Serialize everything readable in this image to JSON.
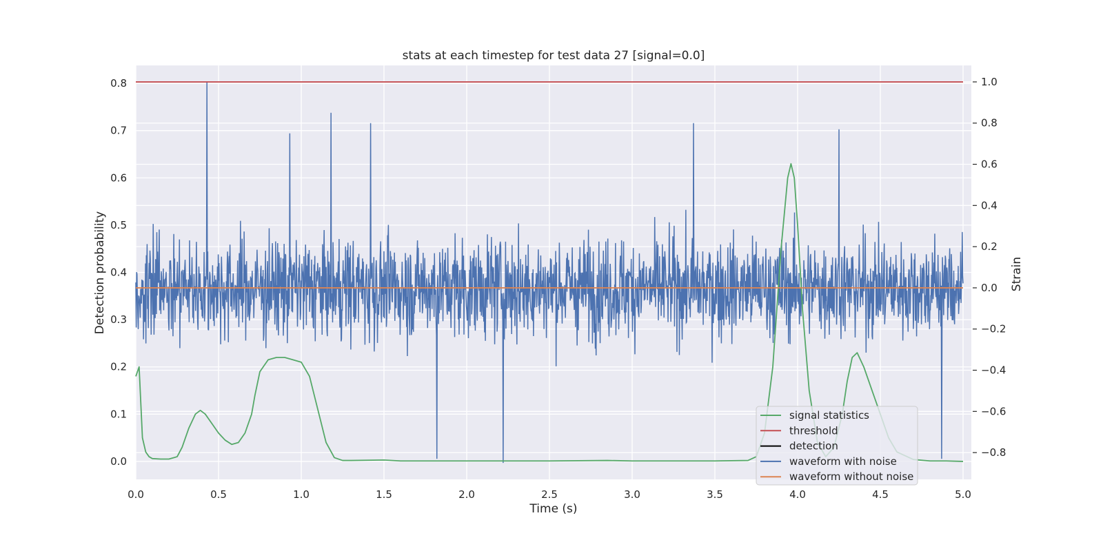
{
  "chart_data": {
    "type": "line",
    "title": "stats at each timestep for test data 27 [signal=0.0]",
    "xlabel": "Time (s)",
    "ylabel": "Detection probability",
    "y2label": "Strain",
    "xlim": [
      0.0,
      5.05
    ],
    "ylim": [
      -0.038,
      0.838
    ],
    "y2lim": [
      -0.93,
      1.08
    ],
    "xticks": [
      0.0,
      0.5,
      1.0,
      1.5,
      2.0,
      2.5,
      3.0,
      3.5,
      4.0,
      4.5,
      5.0
    ],
    "xtick_labels": [
      "0.0",
      "0.5",
      "1.0",
      "1.5",
      "2.0",
      "2.5",
      "3.0",
      "3.5",
      "4.0",
      "4.5",
      "5.0"
    ],
    "yticks": [
      0.0,
      0.1,
      0.2,
      0.3,
      0.4,
      0.5,
      0.6,
      0.7,
      0.8
    ],
    "ytick_labels": [
      "0.0",
      "0.1",
      "0.2",
      "0.3",
      "0.4",
      "0.5",
      "0.6",
      "0.7",
      "0.8"
    ],
    "y2ticks": [
      -0.8,
      -0.6,
      -0.4,
      -0.2,
      0.0,
      0.2,
      0.4,
      0.6,
      0.8,
      1.0
    ],
    "y2tick_labels": [
      "−0.8",
      "−0.6",
      "−0.4",
      "−0.2",
      "0.0",
      "0.2",
      "0.4",
      "0.6",
      "0.8",
      "1.0"
    ],
    "grid": true,
    "legend_position": "bottom-right",
    "series": [
      {
        "name": "signal statistics",
        "axis": "left",
        "color": "#55a868",
        "x": [
          0.0,
          0.02,
          0.04,
          0.06,
          0.08,
          0.1,
          0.15,
          0.2,
          0.25,
          0.28,
          0.32,
          0.36,
          0.39,
          0.42,
          0.46,
          0.5,
          0.54,
          0.58,
          0.62,
          0.66,
          0.7,
          0.72,
          0.75,
          0.8,
          0.85,
          0.9,
          0.95,
          1.0,
          1.05,
          1.1,
          1.15,
          1.2,
          1.25,
          1.3,
          1.5,
          1.6,
          2.0,
          2.5,
          2.85,
          3.0,
          3.5,
          3.7,
          3.75,
          3.8,
          3.85,
          3.9,
          3.94,
          3.96,
          3.98,
          4.0,
          4.03,
          4.07,
          4.12,
          4.17,
          4.22,
          4.27,
          4.3,
          4.33,
          4.36,
          4.4,
          4.45,
          4.5,
          4.55,
          4.6,
          4.7,
          4.8,
          4.9,
          5.0
        ],
        "y": [
          0.18,
          0.2,
          0.05,
          0.02,
          0.01,
          0.006,
          0.005,
          0.005,
          0.01,
          0.03,
          0.07,
          0.1,
          0.108,
          0.1,
          0.08,
          0.06,
          0.045,
          0.036,
          0.04,
          0.06,
          0.1,
          0.14,
          0.19,
          0.215,
          0.22,
          0.22,
          0.215,
          0.21,
          0.18,
          0.11,
          0.04,
          0.008,
          0.002,
          0.002,
          0.003,
          0.001,
          0.001,
          0.001,
          0.002,
          0.001,
          0.001,
          0.002,
          0.01,
          0.06,
          0.2,
          0.45,
          0.6,
          0.63,
          0.6,
          0.5,
          0.32,
          0.15,
          0.04,
          0.01,
          0.03,
          0.1,
          0.17,
          0.22,
          0.23,
          0.2,
          0.15,
          0.1,
          0.05,
          0.02,
          0.004,
          0.001,
          0.001,
          0.0
        ]
      },
      {
        "name": "threshold",
        "axis": "right",
        "color": "#c44e52",
        "x": [
          0.0,
          5.0
        ],
        "y": [
          1.0,
          1.0
        ]
      },
      {
        "name": "detection",
        "axis": "left",
        "color": "#000000",
        "x": [],
        "y": []
      },
      {
        "name": "waveform with noise",
        "axis": "right",
        "color": "#4c72b0",
        "x_range": [
          0.0,
          5.0
        ],
        "samples": 2048,
        "typical_amplitude": 0.17,
        "peaks": [
          {
            "x": 0.43,
            "y": 1.0
          },
          {
            "x": 1.18,
            "y": 0.85
          },
          {
            "x": 3.37,
            "y": 0.8
          },
          {
            "x": 0.93,
            "y": 0.75
          },
          {
            "x": 4.25,
            "y": 0.77
          },
          {
            "x": 1.42,
            "y": 0.8
          },
          {
            "x": 2.22,
            "y": -0.85
          },
          {
            "x": 1.82,
            "y": -0.83
          },
          {
            "x": 4.87,
            "y": -0.83
          }
        ]
      },
      {
        "name": "waveform without noise",
        "axis": "right",
        "color": "#dd8452",
        "x": [
          0.0,
          5.0
        ],
        "y": [
          0.0,
          0.0
        ]
      }
    ]
  }
}
